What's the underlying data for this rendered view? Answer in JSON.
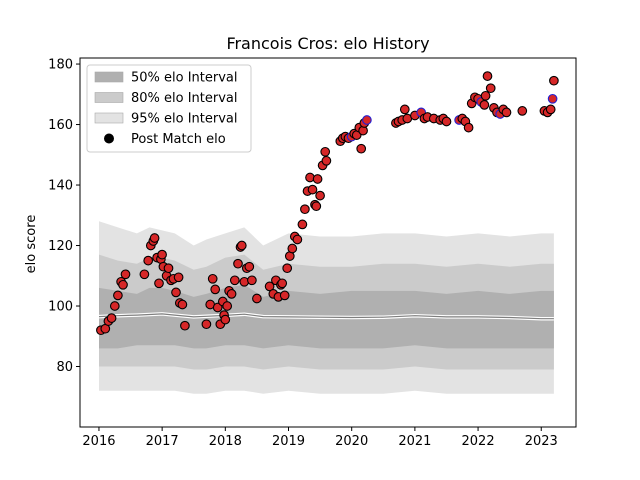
{
  "chart_data": {
    "type": "scatter",
    "title": "Francois Cros: elo History",
    "xlabel": "",
    "ylabel": "elo score",
    "xlim": [
      2015.7,
      2023.55
    ],
    "ylim": [
      60,
      182
    ],
    "x_ticks": [
      2016,
      2017,
      2018,
      2019,
      2020,
      2021,
      2022,
      2023
    ],
    "y_ticks": [
      80,
      100,
      120,
      140,
      160,
      180
    ],
    "grid": false,
    "legend": {
      "placement": "top-left",
      "entries": [
        "50% elo Interval",
        "80% elo Interval",
        "95% elo Interval",
        "Post Match elo"
      ]
    },
    "colors": {
      "band_50": "#b0b0b0",
      "band_80": "#cbcbcb",
      "band_95": "#e3e3e3",
      "mean_line": "#7f7f7f",
      "point_fill": "#d62728",
      "point_edge": "#000000",
      "point_edge_alt": "#1f1fd6"
    },
    "bands": {
      "x": [
        2016.0,
        2016.3,
        2016.6,
        2016.8,
        2017.0,
        2017.2,
        2017.5,
        2017.7,
        2018.0,
        2018.3,
        2018.6,
        2019.0,
        2019.5,
        2020.0,
        2020.5,
        2021.0,
        2021.5,
        2022.0,
        2022.5,
        2023.0,
        2023.2
      ],
      "p95_upper": [
        128,
        126,
        124,
        126,
        125,
        124,
        120,
        122,
        124,
        126,
        120,
        124,
        123,
        123,
        124,
        124,
        123,
        124,
        123,
        124,
        124
      ],
      "p80_upper": [
        117,
        115,
        114,
        116,
        116,
        115,
        112,
        113,
        116,
        117,
        112,
        114,
        113,
        113,
        114,
        114,
        113,
        114,
        113,
        114,
        114
      ],
      "p50_upper": [
        106,
        105,
        104,
        106,
        106,
        105,
        103,
        104,
        106,
        107,
        103,
        105,
        104,
        105,
        105,
        105,
        104,
        105,
        104,
        105,
        105
      ],
      "mean": [
        96.5,
        96.8,
        97,
        97.2,
        97.4,
        97,
        96.4,
        96.6,
        96.9,
        97.3,
        96.5,
        96.4,
        96.3,
        96.2,
        96.3,
        96.8,
        96.4,
        96.4,
        96.2,
        95.8,
        95.8
      ],
      "p50_lower": [
        86,
        86,
        87,
        87,
        87,
        87,
        86,
        86,
        87,
        87,
        86,
        87,
        86,
        86,
        86,
        87,
        86,
        86,
        86,
        86,
        86
      ],
      "p80_lower": [
        80,
        80,
        80,
        80,
        80,
        80,
        79,
        79,
        80,
        80,
        79,
        80,
        79,
        79,
        79,
        80,
        79,
        79,
        79,
        79,
        79
      ],
      "p95_lower": [
        72,
        72,
        72,
        72,
        72,
        72,
        71,
        71,
        72,
        72,
        71,
        72,
        71,
        71,
        71,
        72,
        71,
        71,
        71,
        71,
        71
      ]
    },
    "series": [
      {
        "name": "Post Match elo",
        "points": [
          [
            2016.03,
            92.0
          ],
          [
            2016.1,
            92.5
          ],
          [
            2016.15,
            95
          ],
          [
            2016.2,
            96
          ],
          [
            2016.25,
            100
          ],
          [
            2016.3,
            103.5
          ],
          [
            2016.35,
            108
          ],
          [
            2016.38,
            107
          ],
          [
            2016.42,
            110.5
          ],
          [
            2016.72,
            110.5
          ],
          [
            2016.78,
            115
          ],
          [
            2016.82,
            120
          ],
          [
            2016.86,
            121.5
          ],
          [
            2016.88,
            122.5
          ],
          [
            2016.92,
            116
          ],
          [
            2016.95,
            107.5
          ],
          [
            2016.98,
            115.5
          ],
          [
            2017.0,
            117
          ],
          [
            2017.02,
            113
          ],
          [
            2017.07,
            110
          ],
          [
            2017.1,
            112.5
          ],
          [
            2017.14,
            108.5
          ],
          [
            2017.18,
            109
          ],
          [
            2017.22,
            104.5
          ],
          [
            2017.26,
            109.5
          ],
          [
            2017.28,
            101
          ],
          [
            2017.32,
            100.5
          ],
          [
            2017.36,
            93.5
          ],
          [
            2017.7,
            94
          ],
          [
            2017.76,
            100.5
          ],
          [
            2017.8,
            109
          ],
          [
            2017.84,
            105.5
          ],
          [
            2017.88,
            99.5
          ],
          [
            2017.92,
            94
          ],
          [
            2017.96,
            101.5
          ],
          [
            2017.98,
            97
          ],
          [
            2018.0,
            95.5
          ],
          [
            2018.03,
            100
          ],
          [
            2018.06,
            105
          ],
          [
            2018.1,
            104
          ],
          [
            2018.15,
            108.5
          ],
          [
            2018.2,
            114
          ],
          [
            2018.24,
            119.5
          ],
          [
            2018.26,
            120
          ],
          [
            2018.3,
            108
          ],
          [
            2018.34,
            112.5
          ],
          [
            2018.38,
            113
          ],
          [
            2018.42,
            108.5
          ],
          [
            2018.5,
            102.5
          ],
          [
            2018.7,
            106.5
          ],
          [
            2018.76,
            104
          ],
          [
            2018.8,
            108.5
          ],
          [
            2018.84,
            103
          ],
          [
            2018.88,
            107
          ],
          [
            2018.9,
            107.5
          ],
          [
            2018.94,
            103.5
          ],
          [
            2018.98,
            112.5
          ],
          [
            2019.02,
            116.5
          ],
          [
            2019.06,
            119
          ],
          [
            2019.1,
            123
          ],
          [
            2019.14,
            122
          ],
          [
            2019.22,
            127
          ],
          [
            2019.26,
            132
          ],
          [
            2019.3,
            138
          ],
          [
            2019.34,
            142.5
          ],
          [
            2019.38,
            138.5
          ],
          [
            2019.42,
            133.5
          ],
          [
            2019.44,
            133
          ],
          [
            2019.46,
            142
          ],
          [
            2019.5,
            136.5
          ],
          [
            2019.54,
            146.5
          ],
          [
            2019.6,
            148
          ],
          [
            2019.58,
            151
          ],
          [
            2019.82,
            154.5
          ],
          [
            2019.86,
            155.5
          ],
          [
            2019.9,
            156
          ],
          [
            2019.95,
            155.5
          ],
          [
            2020.0,
            156
          ],
          [
            2020.04,
            157
          ],
          [
            2020.08,
            156.5
          ],
          [
            2020.12,
            159
          ],
          [
            2020.15,
            152
          ],
          [
            2020.18,
            158
          ],
          [
            2020.2,
            160.5
          ],
          [
            2020.24,
            161.5
          ],
          [
            2020.7,
            160.5
          ],
          [
            2020.74,
            161
          ],
          [
            2020.8,
            161.5
          ],
          [
            2020.84,
            165
          ],
          [
            2020.88,
            162
          ],
          [
            2021.0,
            163
          ],
          [
            2021.1,
            164
          ],
          [
            2021.15,
            162
          ],
          [
            2021.2,
            162.5
          ],
          [
            2021.3,
            162
          ],
          [
            2021.4,
            161.5
          ],
          [
            2021.45,
            162
          ],
          [
            2021.5,
            161
          ],
          [
            2021.7,
            161.5
          ],
          [
            2021.75,
            162
          ],
          [
            2021.8,
            161
          ],
          [
            2021.85,
            159
          ],
          [
            2021.9,
            167
          ],
          [
            2021.95,
            169
          ],
          [
            2022.0,
            168.5
          ],
          [
            2022.05,
            167.5
          ],
          [
            2022.1,
            166.5
          ],
          [
            2022.12,
            169.5
          ],
          [
            2022.15,
            176
          ],
          [
            2022.2,
            172
          ],
          [
            2022.25,
            165.5
          ],
          [
            2022.3,
            164
          ],
          [
            2022.35,
            163.5
          ],
          [
            2022.4,
            165
          ],
          [
            2022.45,
            164
          ],
          [
            2022.7,
            164.5
          ],
          [
            2023.05,
            164.5
          ],
          [
            2023.1,
            164
          ],
          [
            2023.15,
            165
          ],
          [
            2023.18,
            168.5
          ],
          [
            2023.2,
            174.5
          ]
        ]
      }
    ]
  }
}
